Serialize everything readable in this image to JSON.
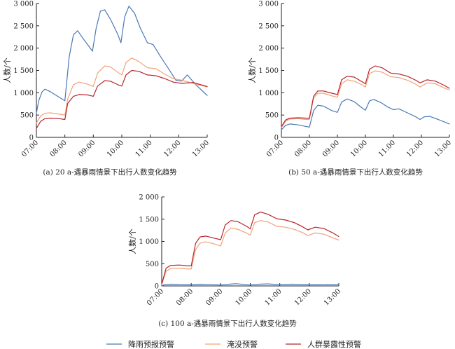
{
  "chart_data": [
    {
      "type": "line",
      "caption": "(a) 20 a-遇暴雨情景下出行人数变化趋势",
      "ylabel": "人数/个",
      "ylim": [
        0,
        3000
      ],
      "yticks": [
        0,
        500,
        1000,
        1500,
        2000,
        2500,
        3000
      ],
      "ytick_labels": [
        "0",
        "500",
        "1 000",
        "1 500",
        "2 000",
        "2 500",
        "3 000"
      ],
      "xlim": [
        7,
        13
      ],
      "xticks": [
        7,
        8,
        9,
        10,
        11,
        12,
        13
      ],
      "xtick_labels": [
        "07:00",
        "08:00",
        "09:00",
        "10:00",
        "11:00",
        "12:00",
        "13:00"
      ],
      "series": [
        {
          "name": "降雨预报预警",
          "color": "#4a78b8",
          "x": [
            7.0,
            7.08,
            7.2,
            7.3,
            7.5,
            7.7,
            7.9,
            8.0,
            8.15,
            8.3,
            8.45,
            8.6,
            8.8,
            8.97,
            9.1,
            9.25,
            9.4,
            9.6,
            9.85,
            9.97,
            10.1,
            10.25,
            10.45,
            10.65,
            10.9,
            11.1,
            11.35,
            11.65,
            11.9,
            12.1,
            12.3,
            12.6,
            12.8,
            13.0
          ],
          "y": [
            540,
            820,
            1020,
            1080,
            1020,
            940,
            860,
            820,
            1800,
            2300,
            2390,
            2250,
            2080,
            1930,
            2450,
            2830,
            2860,
            2650,
            2320,
            2120,
            2700,
            2940,
            2780,
            2450,
            2120,
            2080,
            1820,
            1530,
            1280,
            1260,
            1400,
            1180,
            1060,
            940
          ]
        },
        {
          "name": "淹没预警",
          "color": "#f0a27a",
          "x": [
            7.0,
            7.15,
            7.3,
            7.5,
            7.8,
            8.0,
            8.1,
            8.3,
            8.5,
            8.8,
            9.0,
            9.15,
            9.4,
            9.6,
            9.9,
            10.0,
            10.15,
            10.35,
            10.6,
            10.9,
            11.2,
            11.5,
            11.8,
            12.1,
            12.5,
            13.0
          ],
          "y": [
            320,
            480,
            540,
            550,
            520,
            500,
            860,
            1180,
            1240,
            1190,
            1140,
            1440,
            1600,
            1580,
            1440,
            1400,
            1680,
            1780,
            1700,
            1560,
            1540,
            1420,
            1320,
            1280,
            1210,
            1130
          ]
        },
        {
          "name": "人群暴露性预警",
          "color": "#b8242b",
          "x": [
            7.0,
            7.15,
            7.3,
            7.5,
            7.8,
            8.0,
            8.1,
            8.3,
            8.5,
            8.8,
            9.0,
            9.15,
            9.4,
            9.6,
            9.9,
            10.0,
            10.15,
            10.35,
            10.6,
            10.9,
            11.2,
            11.5,
            11.8,
            12.1,
            12.5,
            13.0
          ],
          "y": [
            200,
            360,
            420,
            430,
            420,
            400,
            760,
            920,
            960,
            950,
            920,
            1150,
            1270,
            1260,
            1170,
            1150,
            1400,
            1500,
            1480,
            1400,
            1380,
            1320,
            1240,
            1210,
            1230,
            1140
          ]
        }
      ]
    },
    {
      "type": "line",
      "caption": "(b) 50 a-遇暴雨情景下出行人数变化趋势",
      "ylabel": "人数/个",
      "ylim": [
        0,
        3000
      ],
      "yticks": [
        0,
        500,
        1000,
        1500,
        2000,
        2500,
        3000
      ],
      "ytick_labels": [
        "0",
        "500",
        "1 000",
        "1 500",
        "2 000",
        "2 500",
        "3 000"
      ],
      "xlim": [
        7,
        13
      ],
      "xticks": [
        7,
        8,
        9,
        10,
        11,
        12,
        13
      ],
      "xtick_labels": [
        "07:00",
        "08:00",
        "09:00",
        "10:00",
        "11:00",
        "12:00",
        "13:00"
      ],
      "series": [
        {
          "name": "降雨预报预警",
          "color": "#4a78b8",
          "x": [
            7.0,
            7.15,
            7.3,
            7.6,
            7.9,
            8.0,
            8.15,
            8.3,
            8.5,
            8.8,
            9.0,
            9.15,
            9.35,
            9.6,
            9.9,
            10.0,
            10.15,
            10.3,
            10.55,
            10.8,
            11.0,
            11.2,
            11.5,
            11.8,
            11.95,
            12.1,
            12.3,
            12.6,
            12.8,
            13.0
          ],
          "y": [
            170,
            270,
            300,
            280,
            240,
            230,
            600,
            720,
            700,
            600,
            560,
            790,
            860,
            800,
            650,
            610,
            820,
            850,
            780,
            680,
            620,
            640,
            550,
            460,
            400,
            460,
            470,
            400,
            350,
            300
          ]
        },
        {
          "name": "淹没预警",
          "color": "#f0a27a",
          "x": [
            7.0,
            7.15,
            7.3,
            7.6,
            7.9,
            8.0,
            8.15,
            8.3,
            8.5,
            8.8,
            9.0,
            9.15,
            9.35,
            9.6,
            9.9,
            10.0,
            10.15,
            10.35,
            10.6,
            10.9,
            11.2,
            11.5,
            11.8,
            11.95,
            12.2,
            12.5,
            12.8,
            13.0
          ],
          "y": [
            220,
            360,
            410,
            420,
            400,
            400,
            880,
            990,
            990,
            930,
            900,
            1200,
            1290,
            1260,
            1170,
            1130,
            1430,
            1490,
            1460,
            1360,
            1340,
            1280,
            1190,
            1130,
            1220,
            1200,
            1110,
            1060
          ]
        },
        {
          "name": "人群暴露性预警",
          "color": "#b8242b",
          "x": [
            7.0,
            7.15,
            7.3,
            7.6,
            7.9,
            8.0,
            8.15,
            8.3,
            8.5,
            8.8,
            9.0,
            9.15,
            9.35,
            9.6,
            9.9,
            10.0,
            10.15,
            10.35,
            10.6,
            10.9,
            11.2,
            11.5,
            11.8,
            11.95,
            12.2,
            12.5,
            12.8,
            13.0
          ],
          "y": [
            240,
            390,
            430,
            440,
            430,
            430,
            920,
            1040,
            1040,
            990,
            960,
            1290,
            1370,
            1350,
            1240,
            1200,
            1530,
            1600,
            1560,
            1440,
            1420,
            1370,
            1280,
            1220,
            1290,
            1260,
            1170,
            1100
          ]
        }
      ]
    },
    {
      "type": "line",
      "caption": "(c) 100 a-遇暴雨情景下出行人数变化趋势",
      "ylabel": "人数/个",
      "ylim": [
        0,
        2000
      ],
      "yticks": [
        0,
        500,
        1000,
        1500,
        2000
      ],
      "ytick_labels": [
        "0",
        "500",
        "1 000",
        "1 500",
        "2 000"
      ],
      "xlim": [
        7,
        13
      ],
      "xticks": [
        7,
        8,
        9,
        10,
        11,
        12,
        13
      ],
      "xtick_labels": [
        "07:00",
        "08:00",
        "09:00",
        "10:00",
        "11:00",
        "12:00",
        "13:00"
      ],
      "series": [
        {
          "name": "降雨预报预警",
          "color": "#4a78b8",
          "x": [
            7.0,
            7.1,
            7.3,
            7.6,
            8.0,
            8.3,
            8.6,
            9.0,
            9.3,
            9.5,
            9.8,
            10.0,
            10.3,
            10.6,
            11.0,
            11.4,
            11.8,
            12.2,
            12.6,
            13.0
          ],
          "y": [
            0,
            30,
            40,
            35,
            30,
            40,
            35,
            20,
            40,
            50,
            35,
            20,
            40,
            45,
            30,
            40,
            30,
            25,
            35,
            30
          ]
        },
        {
          "name": "淹没预警",
          "color": "#f0a27a",
          "x": [
            7.0,
            7.15,
            7.3,
            7.6,
            7.9,
            8.0,
            8.15,
            8.3,
            8.5,
            8.8,
            9.0,
            9.15,
            9.35,
            9.6,
            9.9,
            10.0,
            10.15,
            10.35,
            10.6,
            10.9,
            11.2,
            11.5,
            11.8,
            11.95,
            12.2,
            12.5,
            12.8,
            13.0
          ],
          "y": [
            30,
            330,
            390,
            400,
            380,
            380,
            820,
            960,
            990,
            940,
            900,
            1190,
            1300,
            1270,
            1180,
            1140,
            1420,
            1470,
            1440,
            1340,
            1320,
            1270,
            1190,
            1130,
            1190,
            1160,
            1080,
            1030
          ]
        },
        {
          "name": "人群暴露性预警",
          "color": "#b8242b",
          "x": [
            7.0,
            7.15,
            7.3,
            7.6,
            7.9,
            8.0,
            8.15,
            8.3,
            8.5,
            8.8,
            9.0,
            9.15,
            9.35,
            9.6,
            9.9,
            10.0,
            10.15,
            10.35,
            10.6,
            10.9,
            11.2,
            11.5,
            11.8,
            11.95,
            12.2,
            12.5,
            12.8,
            13.0
          ],
          "y": [
            40,
            400,
            460,
            470,
            450,
            450,
            960,
            1100,
            1120,
            1070,
            1040,
            1370,
            1470,
            1440,
            1330,
            1280,
            1600,
            1660,
            1610,
            1510,
            1480,
            1420,
            1320,
            1260,
            1320,
            1290,
            1190,
            1110
          ]
        }
      ]
    }
  ],
  "legend": {
    "items": [
      {
        "label": "降雨预报预警",
        "color": "#4a78b8"
      },
      {
        "label": "淹没预警",
        "color": "#f0a27a"
      },
      {
        "label": "人群暴露性预警",
        "color": "#b8242b"
      }
    ]
  }
}
